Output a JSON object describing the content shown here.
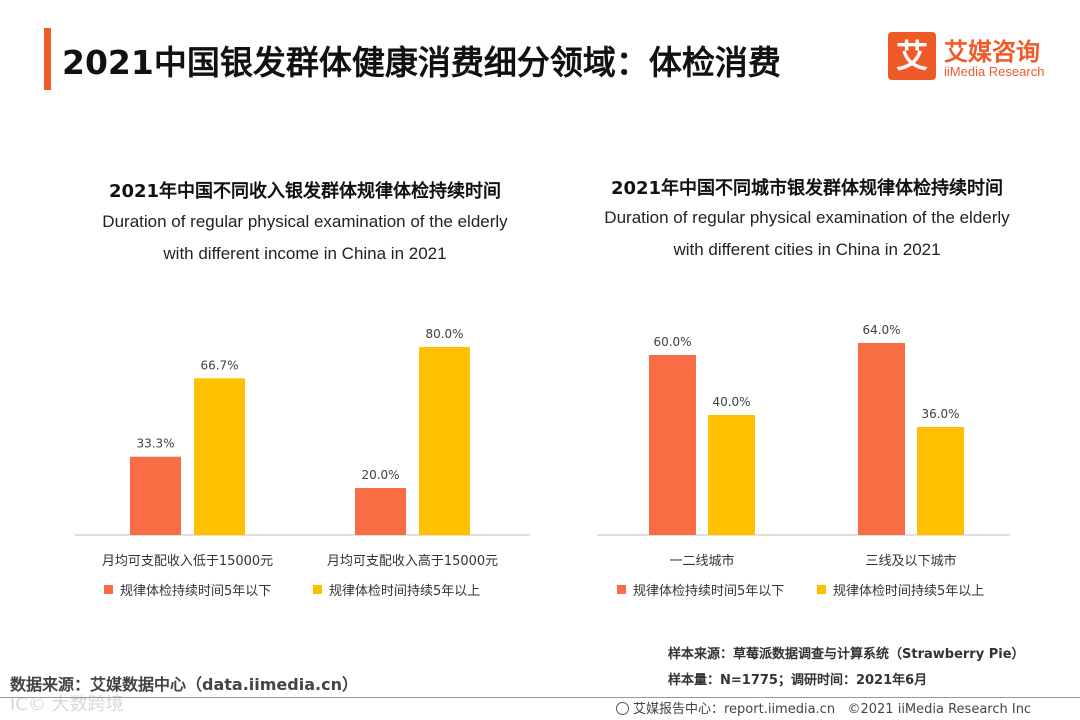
{
  "header": {
    "title": "2021中国银发群体健康消费细分领域：体检消费",
    "logo_mark": "艾",
    "logo_cn": "艾媒咨询",
    "logo_en": "iiMedia Research",
    "accent_color": "#f05a28"
  },
  "chart_data": [
    {
      "type": "bar",
      "title_cn": "2021年中国不同收入银发群体规律体检持续时间",
      "title_en_line1": "Duration of regular physical examination of the elderly",
      "title_en_line2": "with different income in China in 2021",
      "categories": [
        "月均可支配收入低于15000元",
        "月均可支配收入高于15000元"
      ],
      "series": [
        {
          "name": "规律体检持续时间5年以下",
          "color": "#f96d45",
          "values": [
            33.3,
            20.0
          ]
        },
        {
          "name": "规律体检时间持续5年以上",
          "color": "#ffc000",
          "values": [
            66.7,
            80.0
          ]
        }
      ],
      "ylim": [
        0,
        80
      ],
      "value_suffix": "%",
      "legend_position": "bottom"
    },
    {
      "type": "bar",
      "title_cn": "2021年中国不同城市银发群体规律体检持续时间",
      "title_en_line1": "Duration of regular physical examination of the elderly",
      "title_en_line2": "with different cities in China in 2021",
      "categories": [
        "一二线城市",
        "三线及以下城市"
      ],
      "series": [
        {
          "name": "规律体检持续时间5年以下",
          "color": "#f96d45",
          "values": [
            60.0,
            64.0
          ]
        },
        {
          "name": "规律体检时间持续5年以上",
          "color": "#ffc000",
          "values": [
            40.0,
            36.0
          ]
        }
      ],
      "ylim": [
        0,
        64
      ],
      "value_suffix": "%",
      "legend_position": "bottom"
    }
  ],
  "footer": {
    "data_source": "数据来源：艾媒数据中心（data.iimedia.cn）",
    "watermark": "IC© 大数跨境",
    "sample_source": "样本来源：草莓派数据调查与计算系统（Strawberry Pie）",
    "sample_size": "样本量：N=1775；调研时间：2021年6月",
    "report_center": "艾媒报告中心：report.iimedia.cn",
    "copyright": "©2021  iiMedia Research  Inc"
  }
}
